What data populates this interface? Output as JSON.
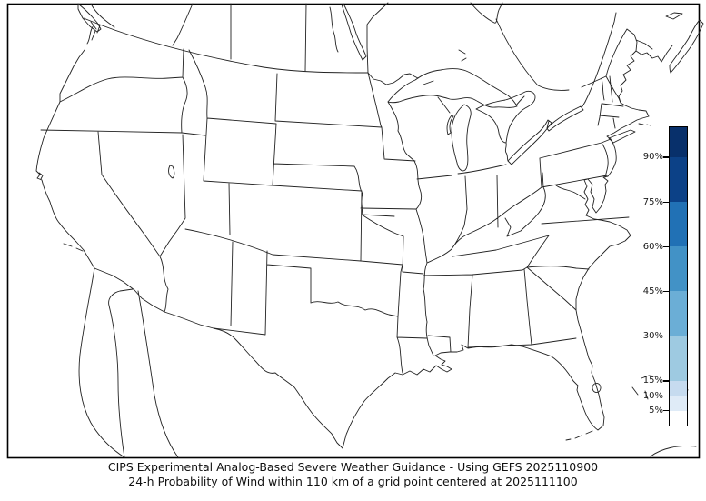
{
  "figure": {
    "caption": {
      "line1": "CIPS Experimental Analog-Based Severe Weather Guidance - Using GEFS 2025110900",
      "line2": "24-h Probability of Wind within 110 km of a grid point centered at 2025111100"
    }
  },
  "colorbar": {
    "tick_labels": [
      "90%",
      "75%",
      "60%",
      "45%",
      "30%",
      "15%",
      "10%",
      "5%"
    ],
    "tick_values": [
      90,
      75,
      60,
      45,
      30,
      15,
      10,
      5
    ],
    "levels": [
      0,
      5,
      10,
      15,
      30,
      45,
      60,
      75,
      90,
      100
    ],
    "colors": [
      "#ffffff",
      "#dfebf7",
      "#c6dbef",
      "#9ecae1",
      "#6baed6",
      "#4292c6",
      "#2171b5",
      "#0c4187",
      "#08306b"
    ],
    "outline_color": "#000000",
    "tick_color": "#000000",
    "label_color": "#1a1a1a"
  },
  "map": {
    "background_color": "#ffffff",
    "line_color": "#222222",
    "frame_color": "#000000"
  }
}
